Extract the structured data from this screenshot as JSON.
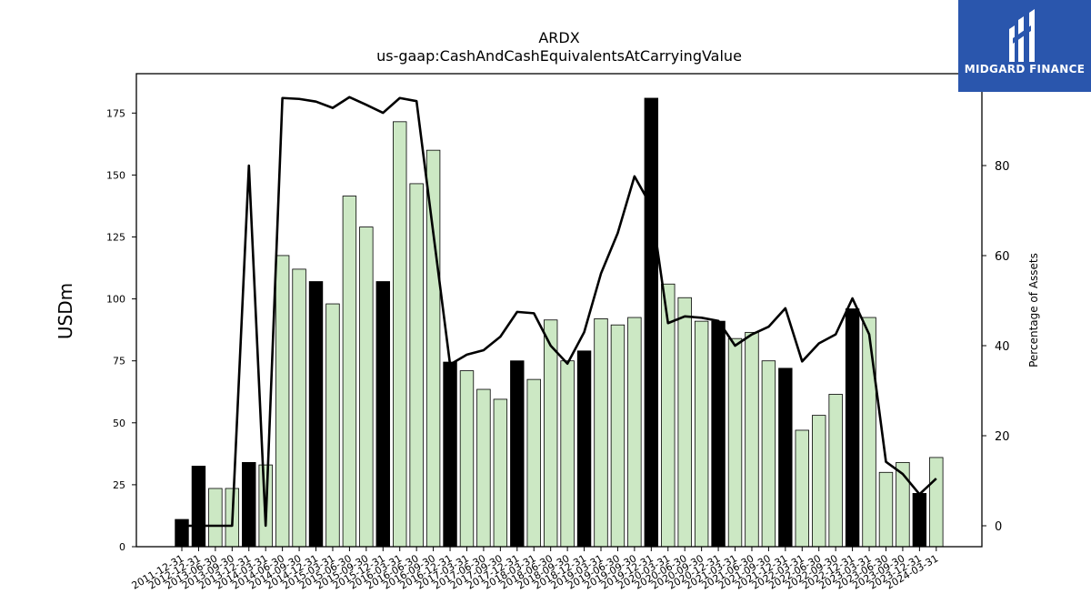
{
  "header": {
    "ticker": "ARDX",
    "concept": "us-gaap:CashAndCashEquivalentsAtCarryingValue"
  },
  "brand": {
    "name": "MIDGARD FINANCE",
    "logo_icon": "midgard-logo-icon",
    "bg_color": "#2a56ad"
  },
  "chart_data": {
    "type": "bar",
    "title": "ARDX",
    "subtitle": "us-gaap:CashAndCashEquivalentsAtCarryingValue",
    "ylabel": "USDm",
    "y2label": "Percentage of Assets",
    "ylim": [
      0,
      190
    ],
    "y2lim": [
      -5,
      100
    ],
    "yticks": [
      0,
      25,
      50,
      75,
      100,
      125,
      150,
      175
    ],
    "y2ticks": [
      0,
      20,
      40,
      60,
      80
    ],
    "grid": false,
    "colors": {
      "annual_bar": "#000000",
      "quarterly_bar": "#cce8c4",
      "line": "#000000"
    },
    "categories": [
      "2011-12-31",
      "2012-12-31",
      "2013-06-30",
      "2013-09-30",
      "2013-12-31",
      "2014-03-31",
      "2014-06-30",
      "2014-09-30",
      "2014-12-31",
      "2015-03-31",
      "2015-06-30",
      "2015-09-30",
      "2015-12-31",
      "2016-03-31",
      "2016-06-30",
      "2016-09-30",
      "2016-12-31",
      "2017-03-31",
      "2017-06-30",
      "2017-09-30",
      "2017-12-31",
      "2018-03-31",
      "2018-06-30",
      "2018-09-30",
      "2018-12-31",
      "2019-03-31",
      "2019-06-30",
      "2019-09-30",
      "2019-12-31",
      "2020-03-31",
      "2020-06-30",
      "2020-09-30",
      "2020-12-31",
      "2021-03-31",
      "2021-06-30",
      "2021-09-30",
      "2021-12-31",
      "2022-03-31",
      "2022-06-30",
      "2022-09-30",
      "2022-12-31",
      "2023-03-31",
      "2023-06-30",
      "2023-09-30",
      "2023-12-31",
      "2024-03-31"
    ],
    "series": [
      {
        "kind": "bar",
        "values": [
          11,
          32.5,
          23.5,
          23.5,
          34,
          33,
          117.5,
          112,
          107,
          98,
          141.5,
          129,
          107,
          171.5,
          146.5,
          160,
          74.5,
          71,
          63.5,
          59.5,
          75,
          67.5,
          91.5,
          75,
          79,
          92,
          89.5,
          92.5,
          181,
          106,
          100.5,
          91,
          91,
          84,
          86.5,
          75,
          72,
          47,
          53,
          61.5,
          96,
          92.5,
          30,
          34,
          21.5,
          36
        ],
        "is_annual": [
          true,
          true,
          false,
          false,
          true,
          false,
          false,
          false,
          true,
          false,
          false,
          false,
          true,
          false,
          false,
          false,
          true,
          false,
          false,
          false,
          true,
          false,
          false,
          false,
          true,
          false,
          false,
          false,
          true,
          false,
          false,
          false,
          true,
          false,
          false,
          false,
          true,
          false,
          false,
          false,
          true,
          false,
          false,
          false,
          true,
          false
        ]
      },
      {
        "kind": "line",
        "axis": "right",
        "values": [
          0,
          0,
          0,
          0,
          80,
          0,
          95,
          94.8,
          94.2,
          92.8,
          95.2,
          93.5,
          91.7,
          95,
          94.3,
          65,
          35.8,
          38,
          39,
          42,
          47.5,
          47.2,
          40,
          36,
          43,
          56,
          65,
          77.6,
          71,
          45,
          46.5,
          46.2,
          45.5,
          40,
          42.5,
          44.2,
          48.3,
          36.5,
          40.5,
          42.5,
          50.5,
          42.5,
          14.2,
          11.5,
          7,
          10.5
        ]
      }
    ]
  }
}
